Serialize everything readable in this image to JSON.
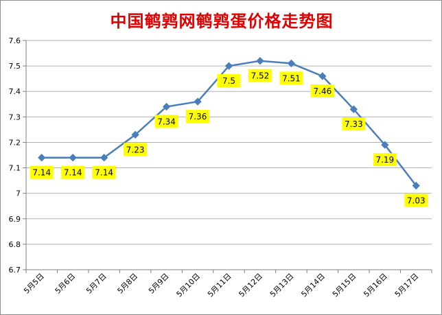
{
  "chart_data": {
    "type": "line",
    "title": "中国鹌鹑网鹌鹑蛋价格走势图",
    "categories": [
      "5月5日",
      "5月6日",
      "5月7日",
      "5月8日",
      "5月9日",
      "5月10日",
      "5月11日",
      "5月12日",
      "5月13日",
      "5月14日",
      "5月15日",
      "5月16日",
      "5月17日"
    ],
    "values": [
      7.14,
      7.14,
      7.14,
      7.23,
      7.34,
      7.36,
      7.5,
      7.52,
      7.51,
      7.46,
      7.33,
      7.19,
      7.03
    ],
    "data_labels": [
      "7.14",
      "7.14",
      "7.14",
      "7.23",
      "7.34",
      "7.36",
      "7.5",
      "7.52",
      "7.51",
      "7.46",
      "7.33",
      "7.19",
      "7.03"
    ],
    "yticks": [
      "6.7",
      "6.8",
      "6.9",
      "7",
      "7.1",
      "7.2",
      "7.3",
      "7.4",
      "7.5",
      "7.6"
    ],
    "ylim": [
      6.7,
      7.6
    ],
    "grid": true,
    "legend": "none",
    "colors": {
      "line": "#4a7ebb",
      "marker": "#4a7ebb",
      "label_bg": "#ffff00",
      "title": "#e00000",
      "grid": "#b0b0b0"
    }
  }
}
